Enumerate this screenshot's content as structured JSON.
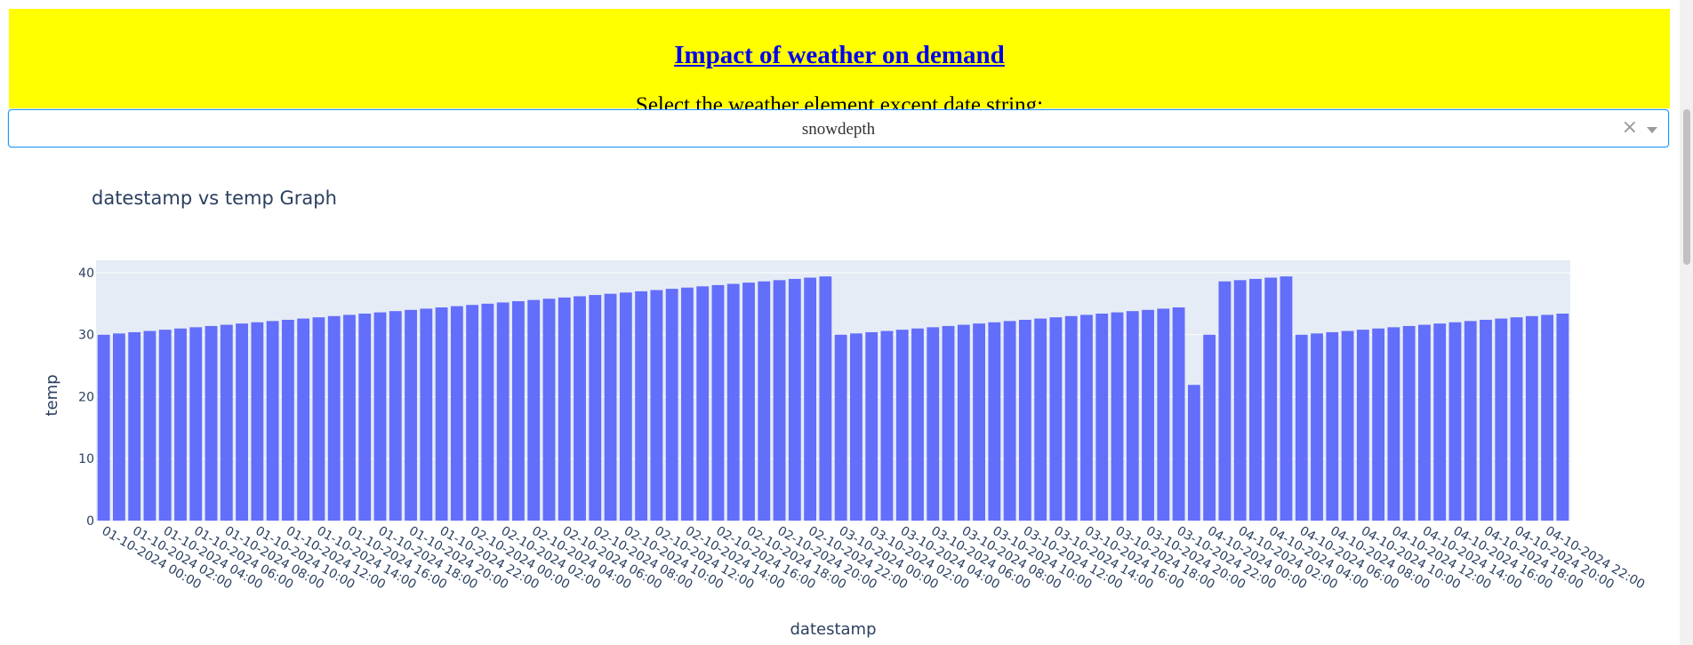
{
  "header": {
    "title": "Impact of weather on demand",
    "dropdown_label": "Select the weather element except date string:"
  },
  "dropdown": {
    "selected": "snowdepth",
    "clear_glyph": "×",
    "icons": [
      "clear-icon",
      "chevron-down-icon"
    ]
  },
  "colors": {
    "banner": "#ffff00",
    "title": "#0000ee",
    "bar": "#636efa",
    "plot_background": "#e5ecf6"
  },
  "chart_data": {
    "type": "bar",
    "title": "datestamp vs temp Graph",
    "xlabel": "datestamp",
    "ylabel": "temp",
    "ylim": [
      0,
      42
    ],
    "yticks": [
      0,
      10,
      20,
      30,
      40
    ],
    "grid": true,
    "categories": [
      "01-10-2024 00:00",
      "01-10-2024 01:00",
      "01-10-2024 02:00",
      "01-10-2024 03:00",
      "01-10-2024 04:00",
      "01-10-2024 05:00",
      "01-10-2024 06:00",
      "01-10-2024 07:00",
      "01-10-2024 08:00",
      "01-10-2024 09:00",
      "01-10-2024 10:00",
      "01-10-2024 11:00",
      "01-10-2024 12:00",
      "01-10-2024 13:00",
      "01-10-2024 14:00",
      "01-10-2024 15:00",
      "01-10-2024 16:00",
      "01-10-2024 17:00",
      "01-10-2024 18:00",
      "01-10-2024 19:00",
      "01-10-2024 20:00",
      "01-10-2024 21:00",
      "01-10-2024 22:00",
      "01-10-2024 23:00",
      "02-10-2024 00:00",
      "02-10-2024 01:00",
      "02-10-2024 02:00",
      "02-10-2024 03:00",
      "02-10-2024 04:00",
      "02-10-2024 05:00",
      "02-10-2024 06:00",
      "02-10-2024 07:00",
      "02-10-2024 08:00",
      "02-10-2024 09:00",
      "02-10-2024 10:00",
      "02-10-2024 11:00",
      "02-10-2024 12:00",
      "02-10-2024 13:00",
      "02-10-2024 14:00",
      "02-10-2024 15:00",
      "02-10-2024 16:00",
      "02-10-2024 17:00",
      "02-10-2024 18:00",
      "02-10-2024 19:00",
      "02-10-2024 20:00",
      "02-10-2024 21:00",
      "02-10-2024 22:00",
      "02-10-2024 23:00",
      "03-10-2024 00:00",
      "03-10-2024 01:00",
      "03-10-2024 02:00",
      "03-10-2024 03:00",
      "03-10-2024 04:00",
      "03-10-2024 05:00",
      "03-10-2024 06:00",
      "03-10-2024 07:00",
      "03-10-2024 08:00",
      "03-10-2024 09:00",
      "03-10-2024 10:00",
      "03-10-2024 11:00",
      "03-10-2024 12:00",
      "03-10-2024 13:00",
      "03-10-2024 14:00",
      "03-10-2024 15:00",
      "03-10-2024 16:00",
      "03-10-2024 17:00",
      "03-10-2024 18:00",
      "03-10-2024 19:00",
      "03-10-2024 20:00",
      "03-10-2024 21:00",
      "03-10-2024 22:00",
      "03-10-2024 23:00",
      "04-10-2024 00:00",
      "04-10-2024 01:00",
      "04-10-2024 02:00",
      "04-10-2024 03:00",
      "04-10-2024 04:00",
      "04-10-2024 05:00",
      "04-10-2024 06:00",
      "04-10-2024 07:00",
      "04-10-2024 08:00",
      "04-10-2024 09:00",
      "04-10-2024 10:00",
      "04-10-2024 11:00",
      "04-10-2024 12:00",
      "04-10-2024 13:00",
      "04-10-2024 14:00",
      "04-10-2024 15:00",
      "04-10-2024 16:00",
      "04-10-2024 17:00",
      "04-10-2024 18:00",
      "04-10-2024 19:00",
      "04-10-2024 20:00",
      "04-10-2024 21:00",
      "04-10-2024 22:00",
      "04-10-2024 23:00"
    ],
    "values": [
      30.0,
      30.2,
      30.4,
      30.6,
      30.8,
      31.0,
      31.2,
      31.4,
      31.6,
      31.8,
      32.0,
      32.2,
      32.4,
      32.6,
      32.8,
      33.0,
      33.2,
      33.4,
      33.6,
      33.8,
      34.0,
      34.2,
      34.4,
      34.6,
      34.8,
      35.0,
      35.2,
      35.4,
      35.6,
      35.8,
      36.0,
      36.2,
      36.4,
      36.6,
      36.8,
      37.0,
      37.2,
      37.4,
      37.6,
      37.8,
      38.0,
      38.2,
      38.4,
      38.6,
      38.8,
      39.0,
      39.2,
      39.4,
      30.0,
      30.2,
      30.4,
      30.6,
      30.8,
      31.0,
      31.2,
      31.4,
      31.6,
      31.8,
      32.0,
      32.2,
      32.4,
      32.6,
      32.8,
      33.0,
      33.2,
      33.4,
      33.6,
      33.8,
      34.0,
      34.2,
      34.4,
      21.9,
      30.0,
      38.6,
      38.8,
      39.0,
      39.2,
      39.4,
      30.0,
      30.2,
      30.4,
      30.6,
      30.8,
      31.0,
      31.2,
      31.4,
      31.6,
      31.8,
      32.0,
      32.2,
      32.4,
      32.6,
      32.8,
      33.0,
      33.2,
      33.4
    ],
    "tick_step": 2
  }
}
